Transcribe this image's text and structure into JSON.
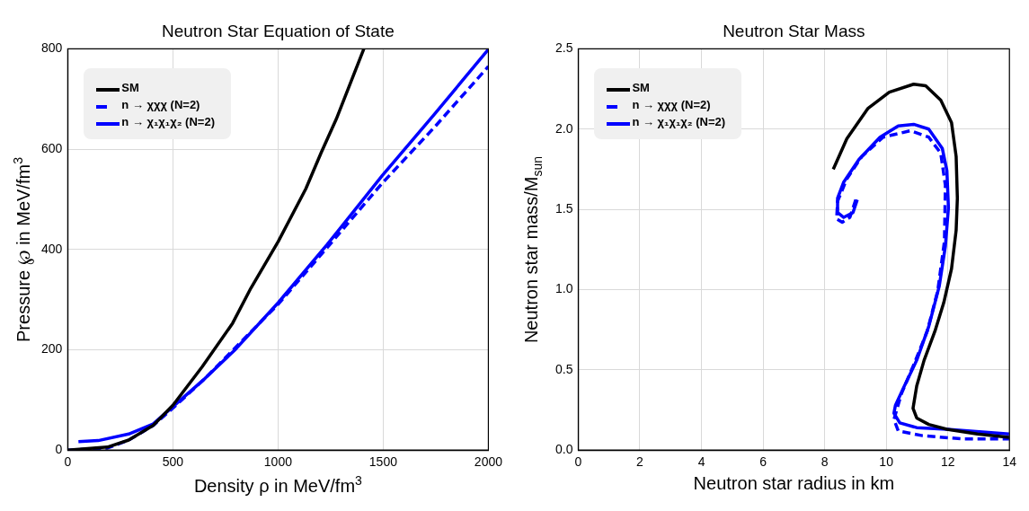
{
  "chart_data": [
    {
      "type": "line",
      "title": "Neutron Star Equation of State",
      "xlabel": "Density ρ in MeV/fm$^{3}$",
      "ylabel": "Pressure ℘ in MeV/fm$^{3}$",
      "xlim": [
        0,
        2000
      ],
      "ylim": [
        0,
        800
      ],
      "xticks": [
        0,
        500,
        1000,
        1500,
        2000
      ],
      "yticks": [
        0,
        200,
        400,
        600,
        800
      ],
      "grid": true,
      "legend": "top left",
      "series": [
        {
          "name": "SM",
          "color": "#000000",
          "line_style": "solid",
          "x": [
            0,
            189,
            290,
            406,
            501,
            639,
            784,
            871,
            1001,
            1132,
            1205,
            1277,
            1364,
            1408
          ],
          "values": [
            0,
            6,
            20,
            49,
            90,
            166,
            253,
            323,
            416,
            521,
            593,
            660,
            753,
            800
          ]
        },
        {
          "name": "n → χχχ (N=2)",
          "color": "#0000ff",
          "line_style": "dashed",
          "x": [
            0,
            189,
            290,
            406,
            501,
            653,
            1001,
            1234,
            1495,
            1742,
            2000
          ],
          "values": [
            0,
            4,
            20,
            49,
            84,
            143,
            291,
            404,
            532,
            643,
            765
          ]
        },
        {
          "name": "n → χ₁χ₁χ₂ (N=2)",
          "color": "#0000ff",
          "line_style": "solid",
          "x": [
            51,
            145,
            290,
            406,
            501,
            653,
            798,
            1001,
            1234,
            1495,
            1742,
            2000
          ],
          "values": [
            17,
            19,
            32,
            52,
            87,
            143,
            201,
            294,
            410,
            547,
            669,
            799
          ]
        }
      ]
    },
    {
      "type": "line",
      "title": "Neutron Star Mass",
      "xlabel": "Neutron star radius in km",
      "ylabel": "Neutron star mass/M$_{sun}$",
      "xlim": [
        0,
        14
      ],
      "ylim": [
        0,
        2.5
      ],
      "xticks": [
        0,
        2,
        4,
        6,
        8,
        10,
        12,
        14
      ],
      "yticks": [
        {
          "value": 0,
          "label": "0.0"
        },
        {
          "value": 0.5,
          "label": "0.5"
        },
        {
          "value": 1,
          "label": "1.0"
        },
        {
          "value": 1.5,
          "label": "1.5"
        },
        {
          "value": 2,
          "label": "2.0"
        },
        {
          "value": 2.5,
          "label": "2.5"
        }
      ],
      "grid": true,
      "legend": "top left",
      "series": [
        {
          "name": "SM",
          "color": "#000000",
          "line_style": "solid",
          "x": [
            8.28,
            8.72,
            9.41,
            10.1,
            10.89,
            11.28,
            11.77,
            12.12,
            12.27,
            12.31,
            12.27,
            12.12,
            11.87,
            11.58,
            11.23,
            10.99,
            10.87,
            10.99,
            11.38,
            11.97,
            12.96,
            13.99
          ],
          "values": [
            1.75,
            1.94,
            2.13,
            2.23,
            2.28,
            2.27,
            2.18,
            2.04,
            1.83,
            1.57,
            1.37,
            1.13,
            0.92,
            0.74,
            0.56,
            0.4,
            0.26,
            0.2,
            0.16,
            0.13,
            0.1,
            0.08
          ]
        },
        {
          "name": "n → χχχ (N=2)",
          "color": "#0000ff",
          "line_style": "dashed",
          "x": [
            9.01,
            8.82,
            8.57,
            8.39,
            8.42,
            8.72,
            9.21,
            9.9,
            10.79,
            11.38,
            11.77,
            11.92,
            11.89,
            11.67,
            11.33,
            10.89,
            10.49,
            10.25,
            10.39,
            11.18,
            12.46,
            13.99
          ],
          "values": [
            1.56,
            1.45,
            1.42,
            1.44,
            1.55,
            1.69,
            1.83,
            1.95,
            1.99,
            1.95,
            1.85,
            1.65,
            1.3,
            0.99,
            0.74,
            0.53,
            0.35,
            0.19,
            0.12,
            0.09,
            0.07,
            0.07
          ]
        },
        {
          "name": "n → χ₁χ₁χ₂ (N=2)",
          "color": "#0000ff",
          "line_style": "solid",
          "x": [
            9.06,
            8.92,
            8.62,
            8.42,
            8.42,
            8.62,
            9.11,
            9.8,
            10.39,
            10.89,
            11.38,
            11.82,
            11.97,
            12.02,
            11.92,
            11.72,
            11.38,
            10.99,
            10.59,
            10.3,
            10.25,
            10.44,
            10.99,
            11.97,
            13.99
          ],
          "values": [
            1.56,
            1.48,
            1.45,
            1.48,
            1.57,
            1.67,
            1.81,
            1.95,
            2.02,
            2.03,
            2.0,
            1.88,
            1.74,
            1.51,
            1.27,
            1.02,
            0.77,
            0.56,
            0.4,
            0.28,
            0.23,
            0.17,
            0.14,
            0.13,
            0.1
          ]
        }
      ]
    }
  ]
}
